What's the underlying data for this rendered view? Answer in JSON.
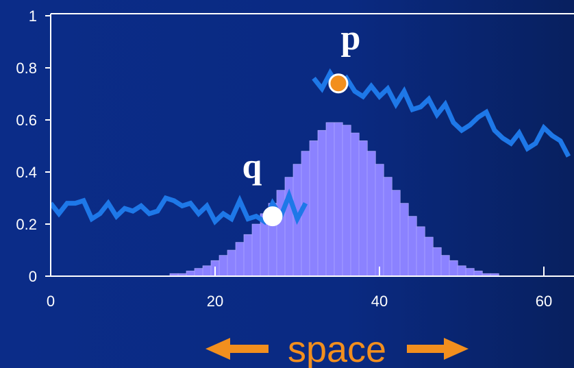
{
  "chart_data": {
    "type": "line",
    "title": "",
    "xlabel": "space",
    "ylabel": "",
    "xlim": [
      0,
      63
    ],
    "ylim": [
      0,
      1
    ],
    "x_ticks": [
      "0",
      "20",
      "40",
      "60"
    ],
    "x_tick_values": [
      0,
      20,
      40,
      60
    ],
    "y_ticks": [
      "0",
      "0.2",
      "0.4",
      "0.6",
      "0.8",
      "1"
    ],
    "y_tick_values": [
      0,
      0.2,
      0.4,
      0.6,
      0.8,
      1.0
    ],
    "grid": false,
    "legend": "none",
    "series": [
      {
        "kind": "line",
        "x": [
          0,
          1,
          2,
          3,
          4,
          5,
          6,
          7,
          8,
          9,
          10,
          11,
          12,
          13,
          14,
          15,
          16,
          17,
          18,
          19,
          20,
          21,
          22,
          23,
          24,
          25,
          26,
          27,
          28,
          29,
          30,
          31
        ],
        "values": [
          0.28,
          0.24,
          0.28,
          0.28,
          0.29,
          0.22,
          0.24,
          0.28,
          0.23,
          0.26,
          0.25,
          0.27,
          0.24,
          0.25,
          0.3,
          0.29,
          0.27,
          0.28,
          0.24,
          0.27,
          0.21,
          0.24,
          0.22,
          0.29,
          0.22,
          0.23,
          0.21,
          0.28,
          0.23,
          0.31,
          0.22,
          0.28
        ]
      },
      {
        "kind": "line",
        "x": [
          32,
          33,
          34,
          35,
          36,
          37,
          38,
          39,
          40,
          41,
          42,
          43,
          44,
          45,
          46,
          47,
          48,
          49,
          50,
          51,
          52,
          53,
          54,
          55,
          56,
          57,
          58,
          59,
          60,
          61,
          62,
          63
        ],
        "values": [
          0.76,
          0.72,
          0.78,
          0.73,
          0.76,
          0.71,
          0.69,
          0.73,
          0.69,
          0.72,
          0.66,
          0.71,
          0.64,
          0.65,
          0.68,
          0.62,
          0.66,
          0.59,
          0.56,
          0.58,
          0.61,
          0.63,
          0.56,
          0.53,
          0.51,
          0.55,
          0.49,
          0.51,
          0.57,
          0.54,
          0.52,
          0.46
        ]
      },
      {
        "kind": "histogram",
        "x": [
          14,
          15,
          16,
          17,
          18,
          19,
          20,
          21,
          22,
          23,
          24,
          25,
          26,
          27,
          28,
          29,
          30,
          31,
          32,
          33,
          34,
          35,
          36,
          37,
          38,
          39,
          40,
          41,
          42,
          43,
          44,
          45,
          46,
          47,
          48,
          49,
          50,
          51,
          52,
          53,
          54,
          55
        ],
        "values": [
          0.0,
          0.01,
          0.01,
          0.02,
          0.03,
          0.04,
          0.06,
          0.08,
          0.1,
          0.13,
          0.16,
          0.2,
          0.24,
          0.28,
          0.33,
          0.38,
          0.43,
          0.48,
          0.52,
          0.56,
          0.59,
          0.59,
          0.58,
          0.55,
          0.52,
          0.48,
          0.43,
          0.38,
          0.33,
          0.28,
          0.23,
          0.19,
          0.15,
          0.11,
          0.08,
          0.06,
          0.04,
          0.03,
          0.02,
          0.01,
          0.01,
          0.0
        ]
      }
    ],
    "annotations": [
      {
        "label": "p",
        "x": 35,
        "y": 0.74,
        "color": "#f28f1e"
      },
      {
        "label": "q",
        "x": 27,
        "y": 0.23,
        "color": "#ffffff"
      }
    ],
    "colors": {
      "background": "#0a2a84",
      "line": "#1e78e8",
      "histogram": "#8b82ff",
      "axis": "#ffffff",
      "caption": "#f28f1e"
    }
  }
}
